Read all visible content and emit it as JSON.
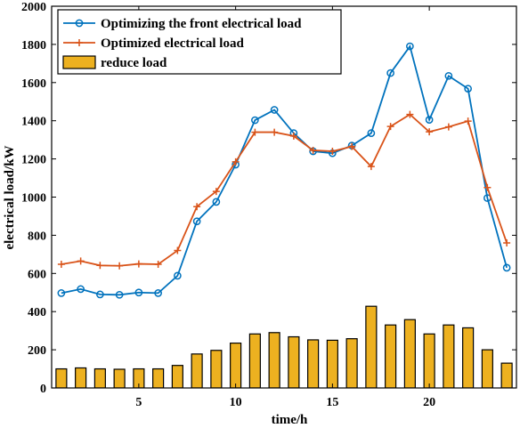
{
  "chart_data": {
    "type": "bar+line",
    "xlabel": "time/h",
    "ylabel": "electrical load/kW",
    "xlim": [
      0.5,
      24.5
    ],
    "ylim": [
      0,
      2000
    ],
    "xticks": [
      5,
      10,
      15,
      20
    ],
    "yticks": [
      0,
      200,
      400,
      600,
      800,
      1000,
      1200,
      1400,
      1600,
      1800,
      2000
    ],
    "grid": false,
    "legend_position": "top-left",
    "x": [
      1,
      2,
      3,
      4,
      5,
      6,
      7,
      8,
      9,
      10,
      11,
      12,
      13,
      14,
      15,
      16,
      17,
      18,
      19,
      20,
      21,
      22,
      23,
      24
    ],
    "series": [
      {
        "name": "Optimizing the front electrical load",
        "kind": "line",
        "marker": "circle",
        "color": "#0072BD",
        "values": [
          497,
          518,
          490,
          488,
          500,
          497,
          588,
          873,
          975,
          1170,
          1403,
          1457,
          1335,
          1240,
          1230,
          1270,
          1335,
          1650,
          1790,
          1405,
          1635,
          1568,
          995,
          630
        ]
      },
      {
        "name": "Optimized electrical load",
        "kind": "line",
        "marker": "plus",
        "color": "#D95319",
        "values": [
          648,
          665,
          642,
          640,
          650,
          648,
          720,
          950,
          1030,
          1185,
          1340,
          1340,
          1320,
          1245,
          1240,
          1265,
          1160,
          1370,
          1433,
          1342,
          1368,
          1398,
          1050,
          760
        ]
      },
      {
        "name": "reduce load",
        "kind": "bar",
        "color": "#EDB120",
        "values": [
          100,
          105,
          100,
          98,
          100,
          100,
          118,
          178,
          197,
          235,
          283,
          290,
          268,
          252,
          250,
          258,
          428,
          330,
          358,
          283,
          330,
          315,
          200,
          130
        ]
      }
    ]
  }
}
